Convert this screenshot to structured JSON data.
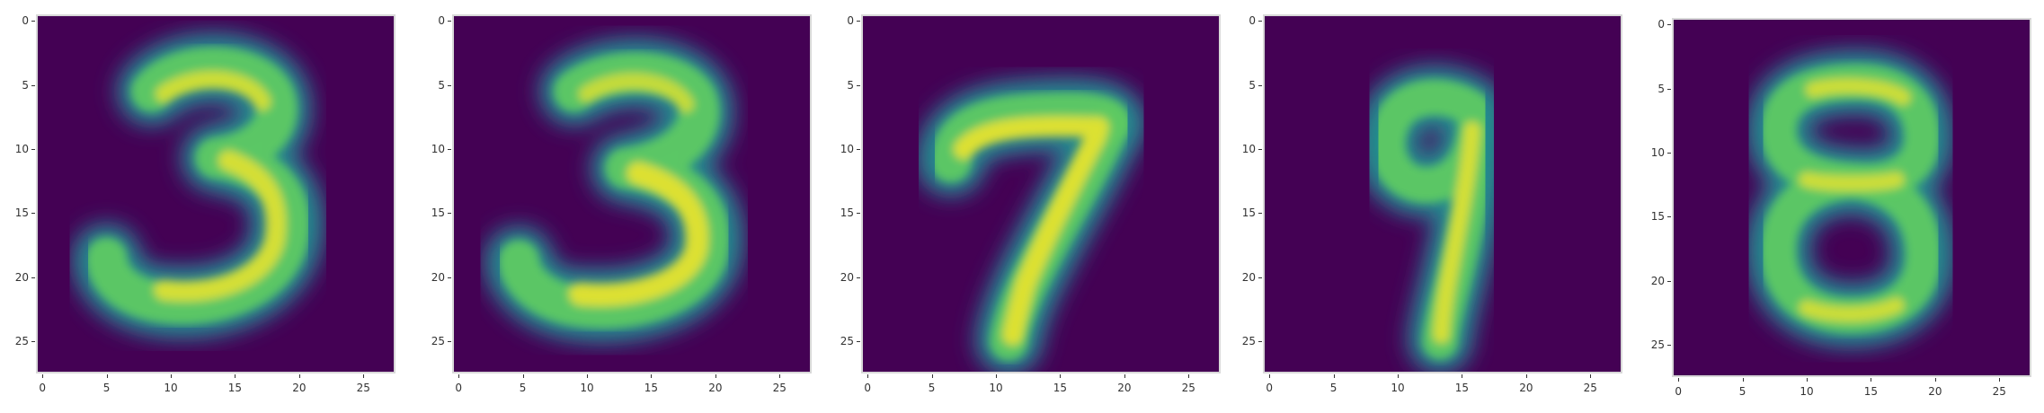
{
  "colors": {
    "background": "#440154",
    "mid": "#31688e",
    "teal": "#21918c",
    "green": "#5ec962",
    "yellow": "#fde725"
  },
  "figure": {
    "x_ticks": [
      "0",
      "5",
      "10",
      "15",
      "20",
      "25"
    ],
    "y_ticks": [
      "0",
      "5",
      "10",
      "15",
      "20",
      "25"
    ],
    "panels": [
      {
        "digit": "3"
      },
      {
        "digit": "3"
      },
      {
        "digit": "7"
      },
      {
        "digit": "9"
      },
      {
        "digit": "8"
      }
    ]
  }
}
